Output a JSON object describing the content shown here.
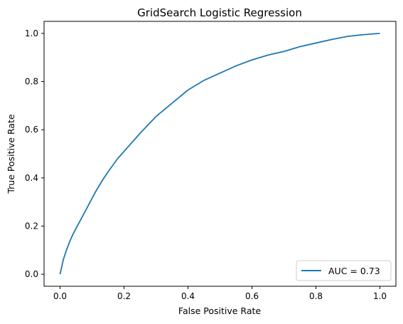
{
  "chart_data": {
    "type": "line",
    "title": "GridSearch Logistic Regression",
    "xlabel": "False Positive Rate",
    "ylabel": "True Positive Rate",
    "xlim": [
      -0.05,
      1.05
    ],
    "ylim": [
      -0.05,
      1.05
    ],
    "x_ticks": [
      0.0,
      0.2,
      0.4,
      0.6,
      0.8,
      1.0
    ],
    "y_ticks": [
      0.0,
      0.2,
      0.4,
      0.6,
      0.8,
      1.0
    ],
    "x_tick_labels": [
      "0.0",
      "0.2",
      "0.4",
      "0.6",
      "0.8",
      "1.0"
    ],
    "y_tick_labels": [
      "0.0",
      "0.2",
      "0.4",
      "0.6",
      "0.8",
      "1.0"
    ],
    "grid": false,
    "legend_position": "lower-right",
    "series": [
      {
        "name": "AUC = 0.73",
        "color": "#1f77b4",
        "x": [
          0.0,
          0.005,
          0.01,
          0.02,
          0.03,
          0.04,
          0.05,
          0.07,
          0.09,
          0.11,
          0.13,
          0.15,
          0.18,
          0.21,
          0.25,
          0.3,
          0.35,
          0.4,
          0.45,
          0.5,
          0.55,
          0.6,
          0.65,
          0.7,
          0.75,
          0.8,
          0.85,
          0.9,
          0.95,
          1.0
        ],
        "y": [
          0.0,
          0.03,
          0.06,
          0.1,
          0.135,
          0.165,
          0.19,
          0.24,
          0.29,
          0.34,
          0.385,
          0.425,
          0.48,
          0.525,
          0.585,
          0.655,
          0.71,
          0.765,
          0.805,
          0.835,
          0.865,
          0.89,
          0.91,
          0.925,
          0.945,
          0.96,
          0.975,
          0.988,
          0.995,
          1.0
        ]
      }
    ]
  }
}
